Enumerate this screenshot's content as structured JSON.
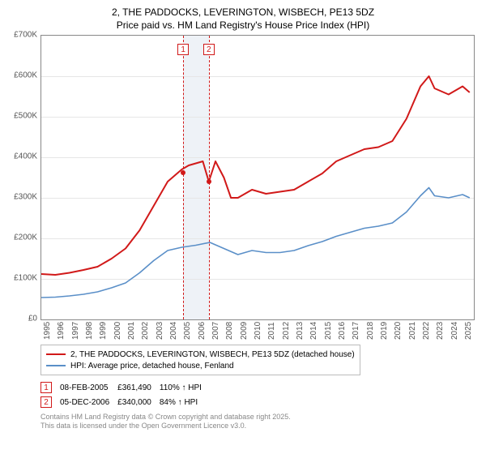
{
  "title": {
    "line1": "2, THE PADDOCKS, LEVERINGTON, WISBECH, PE13 5DZ",
    "line2": "Price paid vs. HM Land Registry's House Price Index (HPI)"
  },
  "chart": {
    "type": "line",
    "background_color": "#ffffff",
    "grid_color": "#e6e6e6",
    "axis_color": "#888888",
    "x_min": 1995,
    "x_max": 2025.8,
    "y_min": 0,
    "y_max": 700000,
    "y_ticks": [
      {
        "v": 0,
        "label": "£0"
      },
      {
        "v": 100000,
        "label": "£100K"
      },
      {
        "v": 200000,
        "label": "£200K"
      },
      {
        "v": 300000,
        "label": "£300K"
      },
      {
        "v": 400000,
        "label": "£400K"
      },
      {
        "v": 500000,
        "label": "£500K"
      },
      {
        "v": 600000,
        "label": "£600K"
      },
      {
        "v": 700000,
        "label": "£700K"
      }
    ],
    "x_ticks": [
      1995,
      1996,
      1997,
      1998,
      1999,
      2000,
      2001,
      2002,
      2003,
      2004,
      2005,
      2006,
      2007,
      2008,
      2009,
      2010,
      2011,
      2012,
      2013,
      2014,
      2015,
      2016,
      2017,
      2018,
      2019,
      2020,
      2021,
      2022,
      2023,
      2024,
      2025
    ],
    "marker_band": {
      "start_year": 2005.1,
      "end_year": 2006.93,
      "color": "#eef2f7"
    },
    "markers": [
      {
        "id": "1",
        "year": 2005.1,
        "value": 361490,
        "line_color": "#d11919"
      },
      {
        "id": "2",
        "year": 2006.93,
        "value": 340000,
        "line_color": "#d11919"
      }
    ],
    "series": [
      {
        "name": "property",
        "label": "2, THE PADDOCKS, LEVERINGTON, WISBECH, PE13 5DZ (detached house)",
        "color": "#d11919",
        "width": 2,
        "points": [
          [
            1995,
            112000
          ],
          [
            1996,
            110000
          ],
          [
            1997,
            115000
          ],
          [
            1998,
            122000
          ],
          [
            1999,
            130000
          ],
          [
            2000,
            150000
          ],
          [
            2001,
            175000
          ],
          [
            2002,
            220000
          ],
          [
            2003,
            280000
          ],
          [
            2004,
            340000
          ],
          [
            2005,
            370000
          ],
          [
            2005.5,
            380000
          ],
          [
            2006,
            385000
          ],
          [
            2006.5,
            390000
          ],
          [
            2006.93,
            340000
          ],
          [
            2007.4,
            390000
          ],
          [
            2008,
            350000
          ],
          [
            2008.5,
            300000
          ],
          [
            2009,
            300000
          ],
          [
            2010,
            320000
          ],
          [
            2011,
            310000
          ],
          [
            2012,
            315000
          ],
          [
            2013,
            320000
          ],
          [
            2014,
            340000
          ],
          [
            2015,
            360000
          ],
          [
            2016,
            390000
          ],
          [
            2017,
            405000
          ],
          [
            2018,
            420000
          ],
          [
            2019,
            425000
          ],
          [
            2020,
            440000
          ],
          [
            2021,
            495000
          ],
          [
            2022,
            575000
          ],
          [
            2022.6,
            600000
          ],
          [
            2023,
            570000
          ],
          [
            2024,
            555000
          ],
          [
            2025,
            575000
          ],
          [
            2025.5,
            560000
          ]
        ]
      },
      {
        "name": "hpi",
        "label": "HPI: Average price, detached house, Fenland",
        "color": "#5a8fc8",
        "width": 1.6,
        "points": [
          [
            1995,
            54000
          ],
          [
            1996,
            55000
          ],
          [
            1997,
            58000
          ],
          [
            1998,
            62000
          ],
          [
            1999,
            68000
          ],
          [
            2000,
            78000
          ],
          [
            2001,
            90000
          ],
          [
            2002,
            115000
          ],
          [
            2003,
            145000
          ],
          [
            2004,
            170000
          ],
          [
            2005,
            178000
          ],
          [
            2006,
            183000
          ],
          [
            2007,
            190000
          ],
          [
            2008,
            175000
          ],
          [
            2009,
            160000
          ],
          [
            2010,
            170000
          ],
          [
            2011,
            165000
          ],
          [
            2012,
            165000
          ],
          [
            2013,
            170000
          ],
          [
            2014,
            182000
          ],
          [
            2015,
            192000
          ],
          [
            2016,
            205000
          ],
          [
            2017,
            215000
          ],
          [
            2018,
            225000
          ],
          [
            2019,
            230000
          ],
          [
            2020,
            238000
          ],
          [
            2021,
            265000
          ],
          [
            2022,
            305000
          ],
          [
            2022.6,
            325000
          ],
          [
            2023,
            305000
          ],
          [
            2024,
            300000
          ],
          [
            2025,
            308000
          ],
          [
            2025.5,
            300000
          ]
        ]
      }
    ]
  },
  "legend": {
    "items": [
      {
        "color": "#d11919",
        "label": "2, THE PADDOCKS, LEVERINGTON, WISBECH, PE13 5DZ (detached house)"
      },
      {
        "color": "#5a8fc8",
        "label": "HPI: Average price, detached house, Fenland"
      }
    ]
  },
  "sales": [
    {
      "id": "1",
      "date": "08-FEB-2005",
      "price": "£361,490",
      "pct": "110% ↑ HPI"
    },
    {
      "id": "2",
      "date": "05-DEC-2006",
      "price": "£340,000",
      "pct": "84% ↑ HPI"
    }
  ],
  "attribution": {
    "line1": "Contains HM Land Registry data © Crown copyright and database right 2025.",
    "line2": "This data is licensed under the Open Government Licence v3.0."
  }
}
